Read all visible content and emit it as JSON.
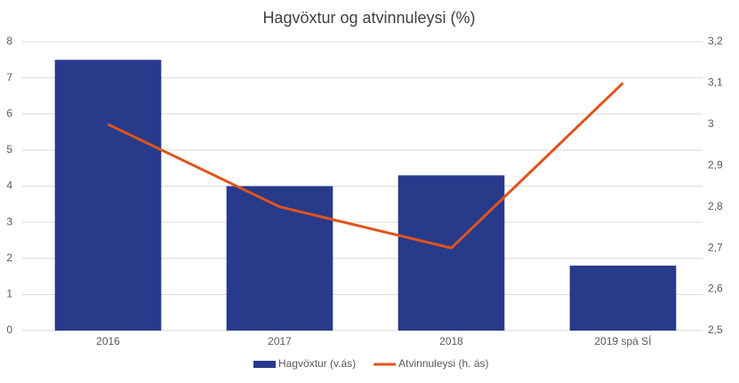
{
  "chart_data": {
    "type": "bar",
    "title": "Hagvöxtur og atvinnuleysi (%)",
    "categories": [
      "2016",
      "2017",
      "2018",
      "2019 spá SÍ"
    ],
    "series": [
      {
        "name": "Hagvöxtur (v.ás)",
        "type": "bar",
        "color": "#283a8a",
        "values": [
          7.5,
          4.0,
          4.3,
          1.8
        ]
      },
      {
        "name": "Atvinnuleysi (h. ás)",
        "type": "line",
        "axis": "y2",
        "color": "#e0541f",
        "values": [
          3.0,
          2.8,
          2.7,
          3.1
        ]
      }
    ],
    "ylim": [
      0,
      8
    ],
    "yticks": [
      0,
      1,
      2,
      3,
      4,
      5,
      6,
      7,
      8
    ],
    "y2lim": [
      2.5,
      3.2
    ],
    "y2ticks": [
      {
        "value": 2.5,
        "label": "2,5"
      },
      {
        "value": 2.6,
        "label": "2,6"
      },
      {
        "value": 2.7,
        "label": "2,7"
      },
      {
        "value": 2.8,
        "label": "2,8"
      },
      {
        "value": 2.9,
        "label": "2,9"
      },
      3,
      {
        "value": 3.1,
        "label": "3,1"
      },
      {
        "value": 3.2,
        "label": "3,2"
      }
    ],
    "grid": true,
    "legend": "bottom"
  }
}
